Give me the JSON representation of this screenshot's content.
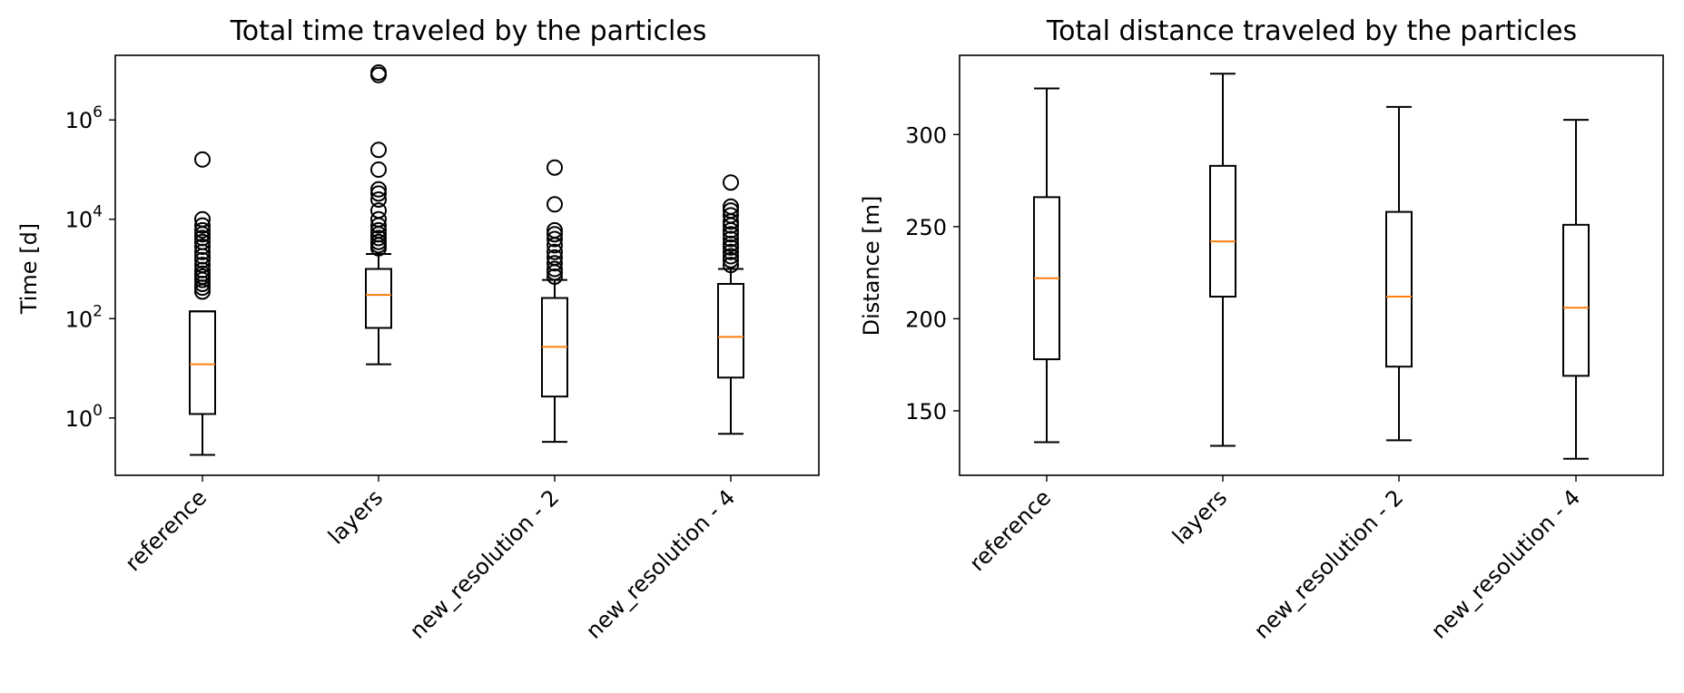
{
  "chart_data": [
    {
      "type": "box",
      "title": "Total time traveled by the particles",
      "ylabel": "Time [d]",
      "yscale": "log",
      "ylim": [
        0.07,
        20000000
      ],
      "yticks": [
        {
          "value": 1,
          "base": "10",
          "exp": "0"
        },
        {
          "value": 100,
          "base": "10",
          "exp": "2"
        },
        {
          "value": 10000,
          "base": "10",
          "exp": "4"
        },
        {
          "value": 1000000,
          "base": "10",
          "exp": "6"
        }
      ],
      "categories": [
        "reference",
        "layers",
        "new_resolution - 2",
        "new_resolution - 4"
      ],
      "boxes": [
        {
          "whislo": 0.18,
          "q1": 1.2,
          "med": 12,
          "q3": 140,
          "whishi": 140,
          "fliers": [
            350,
            420,
            500,
            600,
            700,
            800,
            950,
            1200,
            1500,
            1800,
            2200,
            2800,
            3500,
            4200,
            5000,
            6000,
            7500,
            10000,
            160000
          ]
        },
        {
          "whislo": 12,
          "q1": 65,
          "med": 300,
          "q3": 1000,
          "whishi": 2000,
          "fliers": [
            2600,
            3000,
            3500,
            4200,
            5000,
            6000,
            7500,
            10000,
            15000,
            25000,
            33000,
            40000,
            100000,
            250000,
            8000000,
            9000000
          ]
        },
        {
          "whislo": 0.33,
          "q1": 2.7,
          "med": 27,
          "q3": 260,
          "whishi": 600,
          "fliers": [
            700,
            850,
            1000,
            1300,
            1700,
            2200,
            3000,
            4000,
            5000,
            6000,
            20000,
            110000
          ]
        },
        {
          "whislo": 0.48,
          "q1": 6.5,
          "med": 43,
          "q3": 500,
          "whishi": 1000,
          "fliers": [
            1200,
            1500,
            1800,
            2200,
            2700,
            3200,
            4000,
            5000,
            6000,
            7500,
            9000,
            12000,
            15000,
            18000,
            55000
          ]
        }
      ]
    },
    {
      "type": "box",
      "title": "Total distance traveled by the particles",
      "ylabel": "Distance [m]",
      "yscale": "linear",
      "ylim": [
        115,
        343
      ],
      "yticks": [
        150,
        200,
        250,
        300
      ],
      "categories": [
        "reference",
        "layers",
        "new_resolution - 2",
        "new_resolution - 4"
      ],
      "boxes": [
        {
          "whislo": 133,
          "q1": 178,
          "med": 222,
          "q3": 266,
          "whishi": 325,
          "fliers": []
        },
        {
          "whislo": 131,
          "q1": 212,
          "med": 242,
          "q3": 283,
          "whishi": 333,
          "fliers": []
        },
        {
          "whislo": 134,
          "q1": 174,
          "med": 212,
          "q3": 258,
          "whishi": 315,
          "fliers": []
        },
        {
          "whislo": 124,
          "q1": 169,
          "med": 206,
          "q3": 251,
          "whishi": 308,
          "fliers": []
        }
      ]
    }
  ]
}
